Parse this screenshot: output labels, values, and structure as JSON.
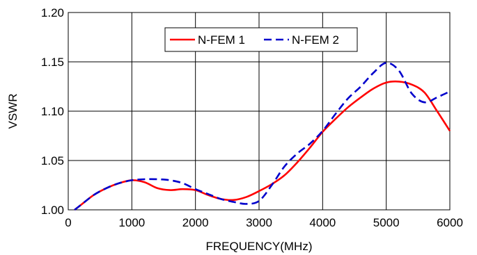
{
  "chart_data": {
    "type": "line",
    "title": "",
    "xlabel": "FREQUENCY(MHz)",
    "ylabel": "VSWR",
    "xlim": [
      0,
      6000
    ],
    "ylim": [
      1.0,
      1.2
    ],
    "x_ticks": [
      "0",
      "1000",
      "2000",
      "3000",
      "4000",
      "5000",
      "6000"
    ],
    "y_ticks": [
      "1.00",
      "1.05",
      "1.10",
      "1.15",
      "1.20"
    ],
    "grid": true,
    "legend_position": "top",
    "series": [
      {
        "name": "N-FEM 1",
        "color": "#ff0000",
        "dash": "solid",
        "x": [
          100,
          200,
          400,
          600,
          800,
          1000,
          1200,
          1400,
          1600,
          1800,
          2000,
          2200,
          2400,
          2600,
          2800,
          3000,
          3200,
          3400,
          3600,
          3800,
          4000,
          4200,
          4400,
          4600,
          4800,
          5000,
          5200,
          5400,
          5600,
          5800,
          6000
        ],
        "y": [
          1.0,
          1.005,
          1.015,
          1.022,
          1.027,
          1.03,
          1.028,
          1.022,
          1.02,
          1.021,
          1.02,
          1.015,
          1.011,
          1.01,
          1.013,
          1.019,
          1.026,
          1.035,
          1.048,
          1.063,
          1.079,
          1.092,
          1.104,
          1.114,
          1.123,
          1.129,
          1.13,
          1.127,
          1.119,
          1.1,
          1.08
        ]
      },
      {
        "name": "N-FEM 2",
        "color": "#0000cc",
        "dash": "dashed",
        "x": [
          100,
          200,
          400,
          600,
          800,
          1000,
          1200,
          1400,
          1600,
          1800,
          2000,
          2200,
          2400,
          2600,
          2800,
          3000,
          3200,
          3400,
          3600,
          3800,
          4000,
          4200,
          4400,
          4600,
          4800,
          5000,
          5200,
          5400,
          5600,
          5800,
          6000
        ],
        "y": [
          1.0,
          1.005,
          1.015,
          1.022,
          1.027,
          1.03,
          1.031,
          1.031,
          1.03,
          1.027,
          1.021,
          1.016,
          1.011,
          1.008,
          1.006,
          1.009,
          1.025,
          1.044,
          1.057,
          1.067,
          1.08,
          1.097,
          1.113,
          1.125,
          1.139,
          1.149,
          1.141,
          1.118,
          1.109,
          1.114,
          1.12
        ]
      }
    ]
  }
}
